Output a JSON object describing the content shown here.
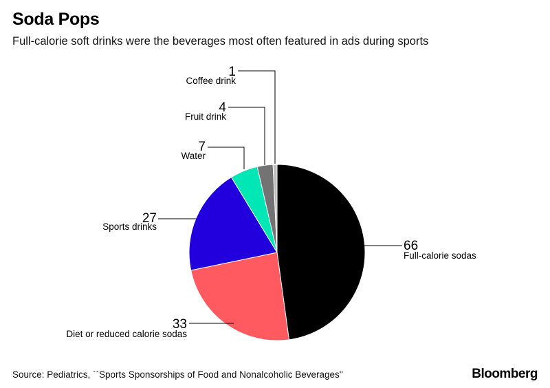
{
  "header": {
    "title": "Soda Pops",
    "subtitle": "Full-calorie soft drinks were the beverages most often featured in ads during sports"
  },
  "chart_data": {
    "type": "pie",
    "title": "Soda Pops",
    "subtitle": "Full-calorie soft drinks were the beverages most often featured in ads during sports",
    "slices": [
      {
        "label": "Full-calorie sodas",
        "value": 66,
        "color": "#000000"
      },
      {
        "label": "Diet or reduced calorie sodas",
        "value": 33,
        "color": "#ff5a5f"
      },
      {
        "label": "Sports drinks",
        "value": 27,
        "color": "#2200dd"
      },
      {
        "label": "Water",
        "value": 7,
        "color": "#00e6b4"
      },
      {
        "label": "Fruit drink",
        "value": 4,
        "color": "#737373"
      },
      {
        "label": "Coffee drink",
        "value": 1,
        "color": "#bdbdbd"
      }
    ],
    "legend": "none"
  },
  "footer": {
    "source": "Source: Pediatrics, ``Sports Sponsorships of Food and Nonalcoholic Beverages''",
    "brand": "Bloomberg"
  }
}
